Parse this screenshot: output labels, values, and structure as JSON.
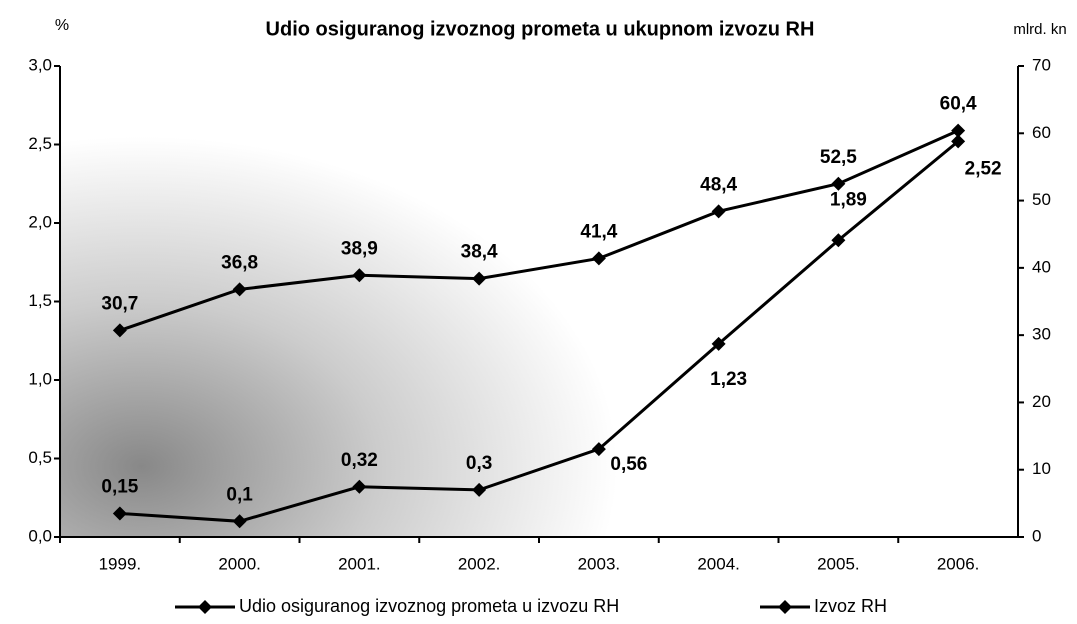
{
  "chart_data": {
    "type": "line",
    "title": "Udio osiguranog izvoznog prometa u ukupnom izvozu RH",
    "y_label": "%",
    "y2_label": "mlrd. kn",
    "categories": [
      "1999.",
      "2000.",
      "2001.",
      "2002.",
      "2003.",
      "2004.",
      "2005.",
      "2006."
    ],
    "series": [
      {
        "name": "Udio osiguranog izvoznog prometa u izvozu RH",
        "color": "#000000",
        "values": [
          0.15,
          0.1,
          0.32,
          0.3,
          0.56,
          1.23,
          1.89,
          2.52
        ],
        "value_labels": [
          "0,15",
          "0,1",
          "0,32",
          "0,3",
          "0,56",
          "1,23",
          "1,89",
          "2,52"
        ]
      },
      {
        "name": "Izvoz RH",
        "color": "#000000",
        "axis": "y2",
        "values": [
          30.7,
          36.8,
          38.9,
          38.4,
          41.4,
          48.4,
          52.5,
          60.4
        ],
        "value_labels": [
          "30,7",
          "36,8",
          "38,9",
          "38,4",
          "41,4",
          "48,4",
          "52,5",
          "60,4"
        ]
      }
    ],
    "ylim": [
      0,
      3
    ],
    "yticks": [
      {
        "value": 0,
        "label": "0,0"
      },
      {
        "value": 0.5,
        "label": "0,5"
      },
      {
        "value": 1,
        "label": "1,0"
      },
      {
        "value": 1.5,
        "label": "1,5"
      },
      {
        "value": 2,
        "label": "2,0"
      },
      {
        "value": 2.5,
        "label": "2,5"
      },
      {
        "value": 3,
        "label": "3,0"
      }
    ],
    "y2lim": [
      0,
      70
    ],
    "y2ticks": [
      0,
      10,
      20,
      30,
      40,
      50,
      60,
      70
    ],
    "grid": false
  }
}
